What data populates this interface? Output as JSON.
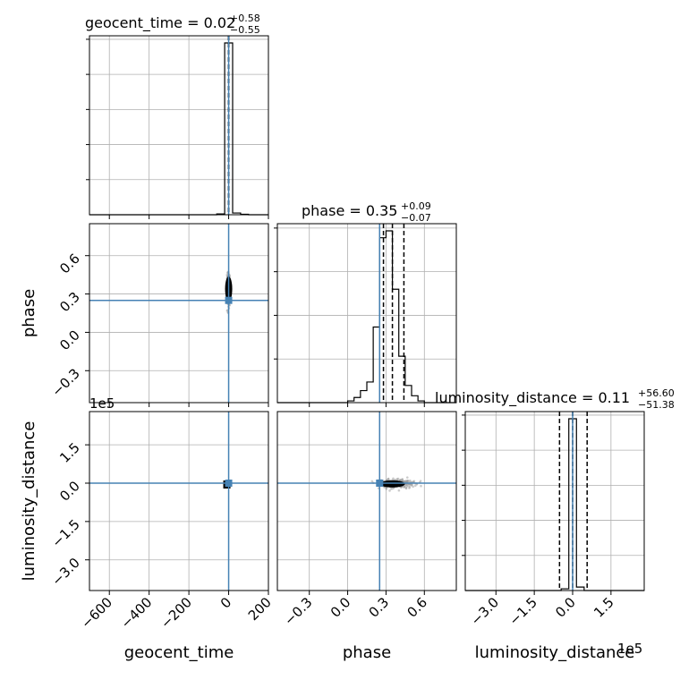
{
  "chart_data": {
    "type": "corner",
    "parameters": [
      "geocent_time",
      "phase",
      "luminosity_distance"
    ],
    "injection_color": "#4682b4",
    "hist_color": "#000000",
    "grid": true,
    "titles": [
      {
        "param": "geocent_time",
        "median": "0.02",
        "plus": "+0.58",
        "minus": "−0.55"
      },
      {
        "param": "phase",
        "median": "0.35",
        "plus": "+0.09",
        "minus": "−0.07"
      },
      {
        "param": "luminosity_distance",
        "median": "0.11",
        "plus": "+56.60",
        "minus": "−51.38"
      }
    ],
    "axis_labels": {
      "x": [
        "geocent_time",
        "phase",
        "luminosity_distance"
      ],
      "y": [
        "phase",
        "luminosity_distance"
      ]
    },
    "offset_labels": {
      "ld_row": "1e5",
      "ld_col": "1e5"
    },
    "ranges": {
      "geocent_time": [
        -700,
        200
      ],
      "phase": [
        -0.55,
        0.85
      ],
      "luminosity_distance": [
        -420000,
        280000
      ]
    },
    "ticks": {
      "geocent_time": {
        "values": [
          -600,
          -400,
          -200,
          0,
          200
        ],
        "labels": [
          "−600",
          "−400",
          "−200",
          "0",
          "200"
        ]
      },
      "phase": {
        "values": [
          -0.3,
          0.0,
          0.3,
          0.6
        ],
        "labels": [
          "−0.3",
          "0.0",
          "0.3",
          "0.6"
        ]
      },
      "luminosity_distance": {
        "values": [
          -300000,
          -150000,
          0,
          150000
        ],
        "labels": [
          "−3.0",
          "−1.5",
          "0.0",
          "1.5"
        ]
      }
    },
    "injection": {
      "geocent_time": 0,
      "phase": 0.25,
      "luminosity_distance": 0
    },
    "quantiles": {
      "geocent_time": [
        -0.53,
        0.02,
        0.6
      ],
      "phase": [
        0.28,
        0.35,
        0.44
      ],
      "luminosity_distance": [
        -51270,
        110,
        56710
      ]
    },
    "histograms": {
      "geocent_time": {
        "bins": [
          -700,
          -660,
          -620,
          -580,
          -540,
          -500,
          -460,
          -420,
          -380,
          -340,
          -300,
          -260,
          -220,
          -180,
          -140,
          -100,
          -60,
          -20,
          20,
          60,
          100,
          140,
          180,
          200
        ],
        "counts": [
          0,
          0,
          0,
          0,
          0,
          0,
          0,
          0,
          0,
          0,
          0,
          0,
          0,
          0,
          0,
          0,
          0.005,
          1.0,
          0.01,
          0.003,
          0,
          0,
          0
        ]
      },
      "phase": {
        "bins": [
          -0.55,
          0.0,
          0.05,
          0.1,
          0.15,
          0.2,
          0.25,
          0.3,
          0.35,
          0.4,
          0.45,
          0.5,
          0.55,
          0.6,
          0.85
        ],
        "counts": [
          0,
          0.01,
          0.03,
          0.07,
          0.12,
          0.44,
          0.96,
          1.0,
          0.66,
          0.27,
          0.1,
          0.04,
          0.01,
          0
        ]
      },
      "luminosity_distance": {
        "bins": [
          -420000,
          -45000,
          -15000,
          15000,
          45000,
          280000
        ],
        "counts": [
          0,
          0.01,
          1.0,
          0.02,
          0
        ]
      }
    }
  }
}
